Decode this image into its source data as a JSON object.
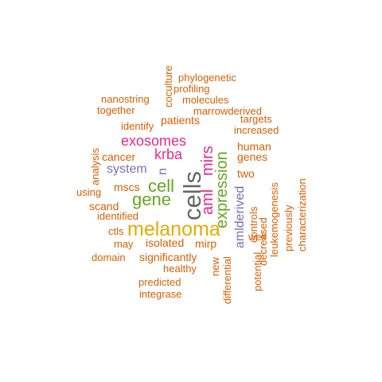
{
  "colors": {
    "orange": "#d95f02",
    "pink": "#e7298a",
    "green": "#66a61e",
    "purple": "#7570b3",
    "gold": "#e6ab02",
    "gray": "#666666"
  },
  "words": [
    "cells",
    "melanoma",
    "expression",
    "gene",
    "cell",
    "exosomes",
    "mirs",
    "aml",
    "krba",
    "system",
    "amlderived",
    "n",
    "human",
    "genes",
    "two",
    "cancer",
    "mscs",
    "significantly",
    "isolated",
    "mirp",
    "patients",
    "scand",
    "identified",
    "using",
    "analysis",
    "ctls",
    "may",
    "domain",
    "healthy",
    "predicted",
    "integrase",
    "new",
    "differential",
    "potential",
    "well",
    "controls",
    "decreased",
    "leukemogenesis",
    "previously",
    "characterization",
    "increased",
    "targets",
    "marrowderived",
    "molecules",
    "profiling",
    "phylogenetic",
    "coculture",
    "nanostring",
    "together",
    "identify"
  ]
}
